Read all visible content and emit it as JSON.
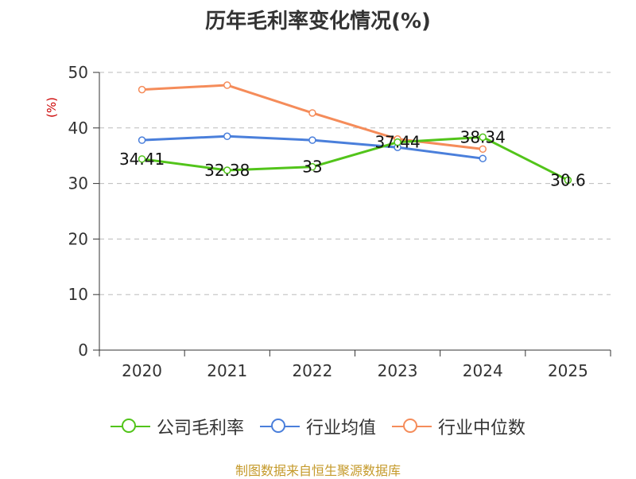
{
  "chart_data": {
    "type": "line",
    "title": "历年毛利率变化情况(%)",
    "ylabel": "(%)",
    "ylim": [
      0,
      50
    ],
    "yticks": [
      0,
      10,
      20,
      30,
      40,
      50
    ],
    "categories": [
      "2020",
      "2021",
      "2022",
      "2023",
      "2024",
      "2025"
    ],
    "series": [
      {
        "name": "公司毛利率",
        "color": "#52c41a",
        "values": [
          34.41,
          32.38,
          33,
          37.44,
          38.34,
          30.6
        ],
        "labels": [
          "34.41",
          "32.38",
          "33",
          "37.44",
          "38.34",
          "30.6"
        ]
      },
      {
        "name": "行业均值",
        "color": "#4a7fdb",
        "values": [
          37.8,
          38.5,
          37.8,
          36.5,
          34.5,
          null
        ]
      },
      {
        "name": "行业中位数",
        "color": "#f58c5a",
        "values": [
          46.9,
          47.7,
          42.7,
          38.0,
          36.2,
          null
        ]
      }
    ]
  },
  "source": "制图数据来自恒生聚源数据库"
}
